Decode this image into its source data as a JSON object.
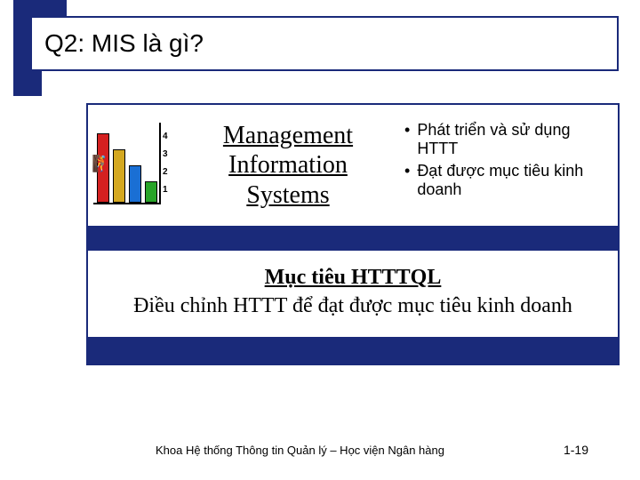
{
  "accent_color": "#1a2a7a",
  "title": "Q2:  MIS là gì?",
  "mis": {
    "line1": "Management",
    "line2": "Information",
    "line3": "Systems"
  },
  "bullets": [
    "Phát triển và sử dụng HTTT",
    "Đạt được mục tiêu kinh doanh"
  ],
  "goal": {
    "heading": "Mục tiêu HTTTQL",
    "body": "Điều chỉnh HTTT để đạt được mục tiêu kinh doanh"
  },
  "clipart_chart": {
    "type": "bar",
    "values": [
      4,
      3,
      2,
      1
    ],
    "bar_colors": [
      "#d42020",
      "#d4a820",
      "#1a6fd4",
      "#28a428"
    ],
    "tick_labels": [
      "4",
      "3",
      "2",
      "1"
    ]
  },
  "footer": {
    "dept": "Khoa Hệ thống Thông tin Quản lý – Học viện Ngân hàng",
    "page": "1-19"
  }
}
